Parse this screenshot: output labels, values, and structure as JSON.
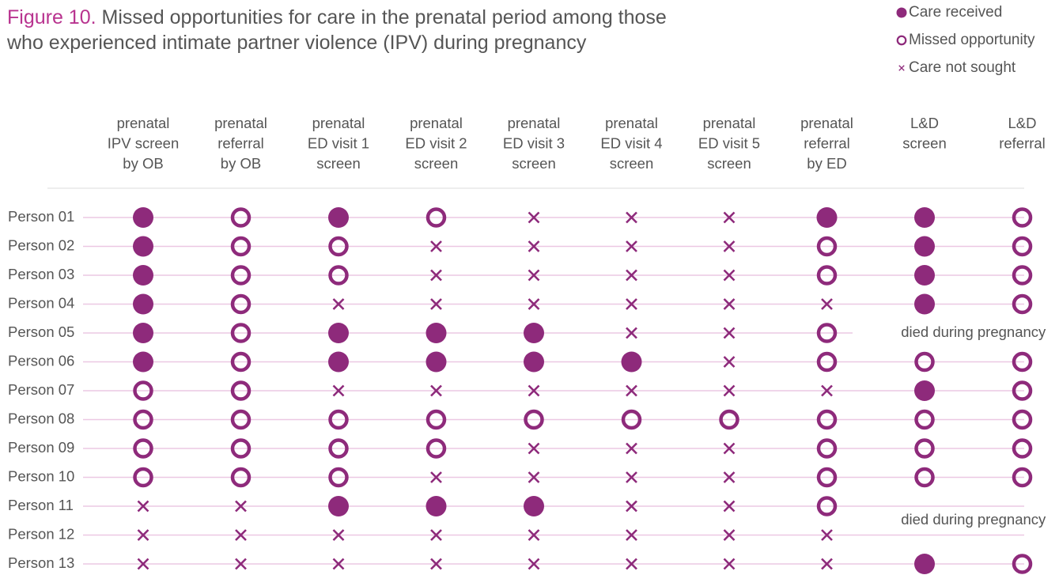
{
  "chart_data": {
    "type": "dot-matrix",
    "figure_label": "Figure 10.",
    "title": "Missed opportunities for care in the prenatal period among those who experienced intimate partner violence (IPV) during pregnancy",
    "color": "#8e2a7b",
    "legend": [
      "Care received",
      "Missed opportunity",
      "Care not sought"
    ],
    "columns": [
      [
        "prenatal",
        "IPV screen",
        "by OB"
      ],
      [
        "prenatal",
        "referral",
        "by OB"
      ],
      [
        "prenatal",
        "ED visit 1",
        "screen"
      ],
      [
        "prenatal",
        "ED visit 2",
        "screen"
      ],
      [
        "prenatal",
        "ED visit 3",
        "screen"
      ],
      [
        "prenatal",
        "ED visit 4",
        "screen"
      ],
      [
        "prenatal",
        "ED visit 5",
        "screen"
      ],
      [
        "prenatal",
        "referral",
        "by ED"
      ],
      [
        "L&D",
        "screen"
      ],
      [
        "L&D",
        "referral"
      ]
    ],
    "rows": [
      "Person 01",
      "Person 02",
      "Person 03",
      "Person 04",
      "Person 05",
      "Person 06",
      "Person 07",
      "Person 08",
      "Person 09",
      "Person 10",
      "Person 11",
      "Person 12",
      "Person 13"
    ],
    "cells": [
      [
        0,
        1,
        0,
        1,
        2,
        2,
        2,
        0,
        0,
        1
      ],
      [
        0,
        1,
        1,
        2,
        2,
        2,
        2,
        1,
        0,
        1
      ],
      [
        0,
        1,
        1,
        2,
        2,
        2,
        2,
        1,
        0,
        1
      ],
      [
        0,
        1,
        2,
        2,
        2,
        2,
        2,
        2,
        0,
        1
      ],
      [
        0,
        1,
        0,
        0,
        0,
        2,
        2,
        1,
        null,
        null
      ],
      [
        0,
        1,
        0,
        0,
        0,
        0,
        2,
        1,
        1,
        1
      ],
      [
        1,
        1,
        2,
        2,
        2,
        2,
        2,
        2,
        0,
        1
      ],
      [
        1,
        1,
        1,
        1,
        1,
        1,
        1,
        1,
        1,
        1
      ],
      [
        1,
        1,
        1,
        1,
        2,
        2,
        2,
        1,
        1,
        1
      ],
      [
        1,
        1,
        1,
        2,
        2,
        2,
        2,
        1,
        1,
        1
      ],
      [
        2,
        2,
        0,
        0,
        0,
        2,
        2,
        1,
        null,
        null
      ],
      [
        2,
        2,
        2,
        2,
        2,
        2,
        2,
        2,
        null,
        null
      ],
      [
        2,
        2,
        2,
        2,
        2,
        2,
        2,
        2,
        0,
        1
      ]
    ],
    "annotations": [
      {
        "text": "died during pregnancy",
        "rows": [
          4
        ]
      },
      {
        "text": "died during pregnancy",
        "rows": [
          10,
          11
        ]
      }
    ]
  }
}
